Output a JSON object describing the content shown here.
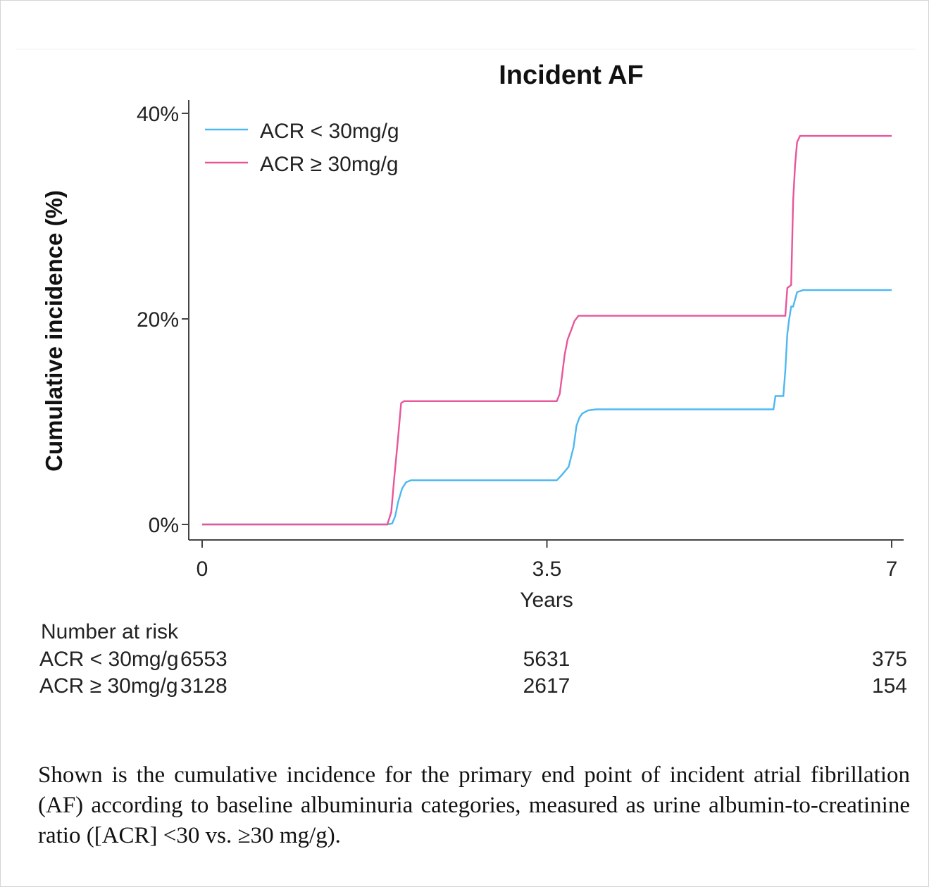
{
  "colors": {
    "acr_low": "#4db8f0",
    "acr_high": "#e8559a",
    "axis": "#444444",
    "text": "#111111"
  },
  "chart_data": {
    "type": "line",
    "step": true,
    "title": "Incident AF",
    "xlabel": "Years",
    "ylabel": "Cumulative incidence (%)",
    "xlim": [
      0,
      7
    ],
    "ylim": [
      0,
      40
    ],
    "x_ticks": [
      0,
      3.5,
      7
    ],
    "x_tick_labels": [
      "0",
      "3.5",
      "7"
    ],
    "y_ticks": [
      0,
      20,
      40
    ],
    "y_tick_labels": [
      "0%",
      "20%",
      "40%"
    ],
    "legend_position": "top-left",
    "series": [
      {
        "name": "ACR < 30mg/g",
        "color_key": "acr_low",
        "x": [
          0,
          1.88,
          1.93,
          1.96,
          1.99,
          2.03,
          2.07,
          2.12,
          2.18,
          2.5,
          3.0,
          3.4,
          3.6,
          3.65,
          3.72,
          3.77,
          3.8,
          3.83,
          3.86,
          3.92,
          4.0,
          4.5,
          5.0,
          5.5,
          5.8,
          5.82,
          5.9,
          5.92,
          5.94,
          5.96,
          5.98,
          6.0,
          6.04,
          6.1,
          6.5,
          7.0
        ],
        "y": [
          0,
          0,
          0.1,
          0.8,
          2.2,
          3.5,
          4.1,
          4.3,
          4.3,
          4.3,
          4.3,
          4.3,
          4.3,
          4.8,
          5.6,
          7.5,
          9.6,
          10.4,
          10.8,
          11.1,
          11.2,
          11.2,
          11.2,
          11.2,
          11.2,
          12.5,
          12.5,
          15.0,
          18.5,
          20.0,
          21.2,
          21.2,
          22.6,
          22.8,
          22.8,
          22.8
        ]
      },
      {
        "name": "ACR ≥ 30mg/g",
        "color_key": "acr_high",
        "x": [
          0,
          1.88,
          1.92,
          1.95,
          1.98,
          2.0,
          2.02,
          2.05,
          2.5,
          3.0,
          3.4,
          3.6,
          3.63,
          3.68,
          3.71,
          3.75,
          3.78,
          3.82,
          3.85,
          4.0,
          4.5,
          5.0,
          5.5,
          5.92,
          5.94,
          5.98,
          6.0,
          6.02,
          6.04,
          6.07,
          6.5,
          7.0
        ],
        "y": [
          0,
          0,
          1.2,
          4.5,
          7.5,
          9.6,
          11.8,
          12.0,
          12.0,
          12.0,
          12.0,
          12.0,
          12.7,
          16.5,
          18.0,
          19.0,
          19.8,
          20.3,
          20.3,
          20.3,
          20.3,
          20.3,
          20.3,
          20.3,
          23.0,
          23.3,
          31.5,
          35.0,
          37.2,
          37.8,
          37.8,
          37.8
        ]
      }
    ],
    "risk_table": {
      "title": "Number at risk",
      "rows": [
        {
          "label": "ACR < 30mg/g",
          "values": [
            "6553",
            "5631",
            "375"
          ]
        },
        {
          "label": "ACR ≥ 30mg/g",
          "values": [
            "3128",
            "2617",
            "154"
          ]
        }
      ]
    }
  },
  "caption": "Shown is the cumulative incidence for the primary end point of incident atrial fibrillation (AF) according to baseline albuminuria categories, measured as urine albumin-to-creatinine ratio ([ACR] <30 vs. ≥30 mg/g)."
}
